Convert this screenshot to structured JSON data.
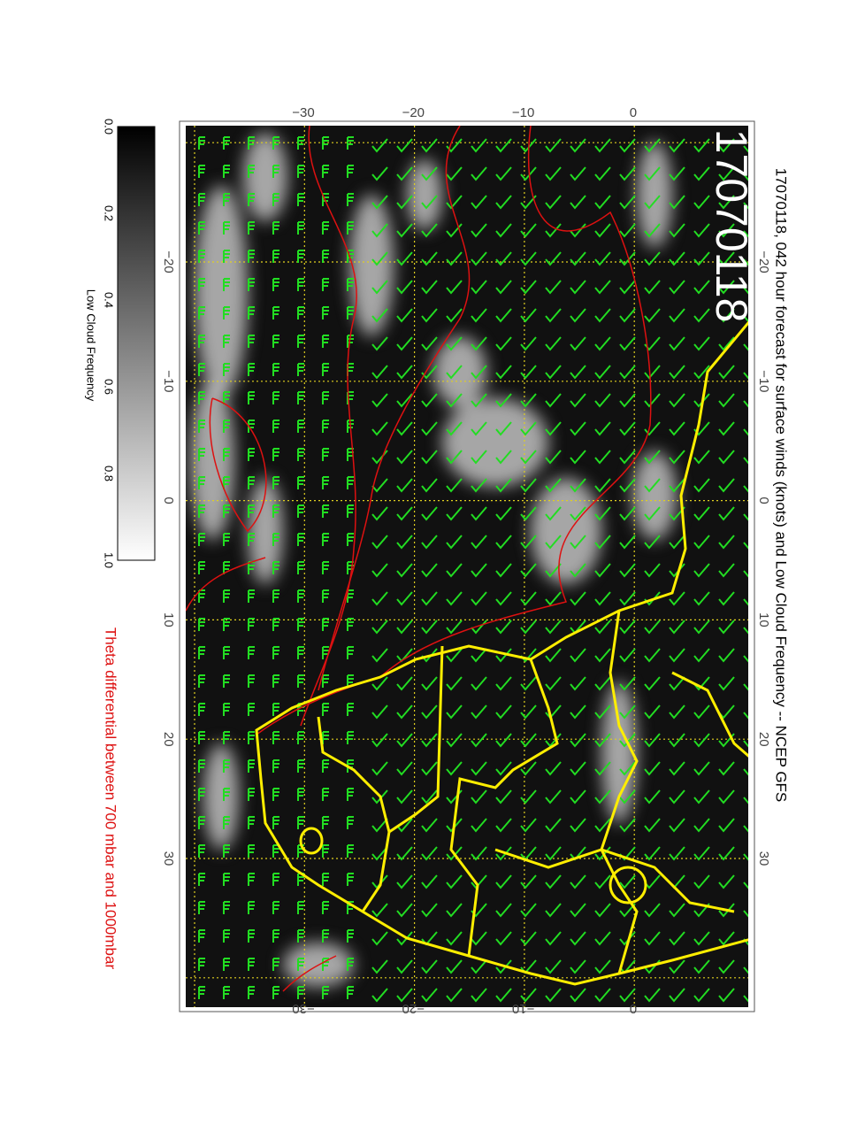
{
  "title": "17070118, 042 hour forecast for surface winds (knots) and Low Cloud Frequency -- NCEP GFS",
  "stamp": "17070118",
  "colorbar": {
    "label": "Low Cloud Frequency",
    "ticks": [
      "0.0",
      "0.2",
      "0.4",
      "0.6",
      "0.8",
      "1.0"
    ]
  },
  "contour_note": "Theta differential between 700 mbar and 1000mbar",
  "axes": {
    "top": [
      "−30",
      "−20",
      "−10",
      "0"
    ],
    "bottom": [
      "−30",
      "−20",
      "−10",
      "0"
    ],
    "left": [
      "−20",
      "−10",
      "0",
      "10",
      "20",
      "30"
    ],
    "right": [
      "−20",
      "−10",
      "0",
      "10",
      "20",
      "30"
    ]
  }
}
